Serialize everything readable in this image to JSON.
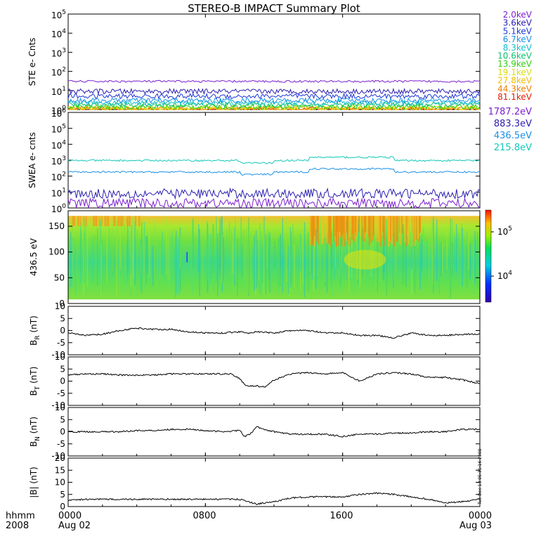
{
  "title": "STEREO-B IMPACT Summary Plot",
  "footer": {
    "row1_label": "hhmm",
    "row2_label": "2008",
    "ticks": [
      {
        "hhmm": "0000",
        "date": "Aug 02"
      },
      {
        "hhmm": "0800",
        "date": ""
      },
      {
        "hhmm": "1600",
        "date": ""
      },
      {
        "hhmm": "0000",
        "date": "Aug 03"
      }
    ],
    "timestamp": "Tue Dec 13 05:31:16 2008"
  },
  "chart_data": [
    {
      "id": "ste",
      "type": "line",
      "ylabel": "STE e- Cnts",
      "yscale": "log",
      "ylim_exp": [
        0,
        5
      ],
      "tick_exps": [
        0,
        1,
        2,
        3,
        4,
        5
      ],
      "tick_base": "10",
      "xlim_hours": [
        0,
        24
      ],
      "series": [
        {
          "name": "2.0keV",
          "color": "#7b1fd0",
          "level": 30
        },
        {
          "name": "3.6keV",
          "color": "#2a1fb0",
          "level": 9
        },
        {
          "name": "5.1keV",
          "color": "#1f38d8",
          "level": 5
        },
        {
          "name": "6.7keV",
          "color": "#1a90e8",
          "level": 3
        },
        {
          "name": "8.3keV",
          "color": "#14c0d0",
          "level": 2.3
        },
        {
          "name": "10.6keV",
          "color": "#10c070",
          "level": 1.8
        },
        {
          "name": "13.9keV",
          "color": "#30d010",
          "level": 1.4
        },
        {
          "name": "19.1keV",
          "color": "#d8e010",
          "level": 1.2
        },
        {
          "name": "27.8keV",
          "color": "#f0c000",
          "level": 1.1
        },
        {
          "name": "44.3keV",
          "color": "#f08000",
          "level": 1.05
        },
        {
          "name": "81.1keV",
          "color": "#e02000",
          "level": 1.0
        }
      ]
    },
    {
      "id": "swea",
      "type": "line",
      "ylabel": "SWEA e- cnts",
      "yscale": "log",
      "ylim_exp": [
        0,
        6
      ],
      "tick_exps": [
        0,
        1,
        2,
        3,
        4,
        5,
        6
      ],
      "tick_base": "10",
      "xlim_hours": [
        0,
        24
      ],
      "series": [
        {
          "name": "1787.2eV",
          "color": "#7b1fd0",
          "level": 2
        },
        {
          "name": "883.3eV",
          "color": "#2a1fb0",
          "level": 8
        },
        {
          "name": "436.5eV",
          "color": "#1a90e8",
          "level": 180
        },
        {
          "name": "215.8eV",
          "color": "#14c8b8",
          "level": 950
        }
      ]
    },
    {
      "id": "pad",
      "type": "heatmap",
      "ylabel": "436.5 eV",
      "ylim": [
        0,
        180
      ],
      "yticks": [
        0,
        50,
        100,
        150
      ],
      "xlim_hours": [
        0,
        24
      ],
      "colorbar": {
        "ticks": [
          {
            "base": "10",
            "exp": "5"
          },
          {
            "base": "10",
            "exp": "4"
          }
        ]
      }
    },
    {
      "id": "br",
      "type": "line",
      "ylabel_main": "B",
      "ylabel_sub": "R",
      "ylabel_unit": " (nT)",
      "ylim": [
        -10,
        10
      ],
      "yticks": [
        -10,
        -5,
        0,
        5,
        10
      ],
      "xlim_hours": [
        0,
        24
      ],
      "x": [
        0,
        1,
        2,
        3,
        4,
        5,
        6,
        7,
        8,
        9,
        10,
        10.5,
        11,
        12,
        13,
        14,
        15,
        16,
        17,
        18,
        19,
        20,
        21,
        22,
        23,
        24
      ],
      "values": [
        -1,
        -2,
        -1.5,
        0,
        1,
        0.5,
        0.5,
        -0.5,
        -1,
        -1,
        -0.5,
        -1,
        -0.5,
        -1,
        0,
        0,
        -1,
        -1,
        -2,
        -2,
        -3,
        -1,
        -2,
        -2,
        -1.5,
        -1.5
      ]
    },
    {
      "id": "bt",
      "type": "line",
      "ylabel_main": "B",
      "ylabel_sub": "T",
      "ylabel_unit": " (nT)",
      "ylim": [
        -10,
        10
      ],
      "yticks": [
        -10,
        -5,
        0,
        5,
        10
      ],
      "xlim_hours": [
        0,
        24
      ],
      "x": [
        0,
        1,
        2,
        3,
        4,
        5,
        6,
        7,
        8,
        9,
        9.5,
        10,
        10.3,
        10.6,
        11,
        11.5,
        12,
        13,
        14,
        15,
        16,
        17,
        18,
        19,
        20,
        21,
        22,
        23,
        24
      ],
      "values": [
        2.5,
        3,
        3,
        2.5,
        2.5,
        2.5,
        3,
        3,
        3,
        3,
        3,
        1,
        -1.5,
        -2,
        -2,
        -2.5,
        0.5,
        3,
        3.5,
        3,
        3.5,
        0,
        3,
        3.5,
        3,
        1.5,
        1.5,
        0.5,
        -1
      ]
    },
    {
      "id": "bn",
      "type": "line",
      "ylabel_main": "B",
      "ylabel_sub": "N",
      "ylabel_unit": " (nT)",
      "ylim": [
        -10,
        10
      ],
      "yticks": [
        -10,
        -5,
        0,
        5,
        10
      ],
      "xlim_hours": [
        0,
        24
      ],
      "x": [
        0,
        1,
        2,
        3,
        4,
        5,
        6,
        7,
        8,
        9,
        10,
        10.3,
        10.6,
        11,
        11.4,
        12,
        13,
        14,
        15,
        16,
        17,
        18,
        19,
        20,
        21,
        22,
        23,
        24
      ],
      "values": [
        0,
        0,
        0,
        0,
        0.5,
        0.5,
        1,
        1,
        0.5,
        0,
        0.5,
        -2,
        -1,
        2,
        1,
        0,
        -1,
        -1,
        -1,
        -2,
        -1,
        -1,
        -0.5,
        -0.5,
        0,
        0,
        1,
        1
      ]
    },
    {
      "id": "bmag",
      "type": "line",
      "ylabel_main": "|B| (nT)",
      "ylim": [
        0,
        20
      ],
      "yticks": [
        0,
        5,
        10,
        15,
        20
      ],
      "xlim_hours": [
        0,
        24
      ],
      "x": [
        0,
        1,
        2,
        3,
        4,
        5,
        6,
        7,
        8,
        9,
        10,
        10.5,
        11,
        11.5,
        12,
        13,
        14,
        15,
        16,
        17,
        18,
        19,
        20,
        21,
        22,
        23,
        24
      ],
      "values": [
        2.5,
        3,
        3,
        3,
        3,
        3,
        3,
        3,
        3,
        3,
        3,
        2,
        1,
        1.5,
        2,
        3.5,
        4,
        4,
        4,
        5,
        5.5,
        5,
        4,
        3,
        1.5,
        2,
        3
      ]
    }
  ]
}
